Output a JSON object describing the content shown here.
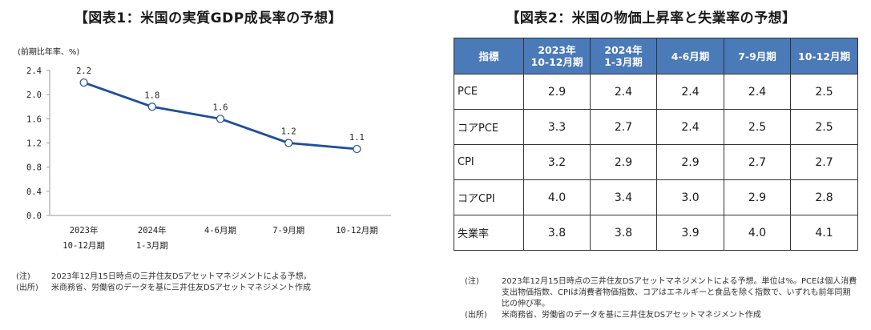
{
  "left": {
    "title": "【図表1：米国の実質GDP成長率の予想】",
    "unit_label": "(前期比年率、%)",
    "note_label": "(注)",
    "note_text": "2023年12月15日時点の三井住友DSアセットマネジメントによる予想。",
    "source_label": "(出所)",
    "source_text": "米商務省、労働省のデータを基に三井住友DSアセットマネジメント作成"
  },
  "chart_data": {
    "type": "line",
    "categories": [
      [
        "2023年",
        "10-12月期"
      ],
      [
        "2024年",
        "1-3月期"
      ],
      [
        "4-6月期"
      ],
      [
        "7-9月期"
      ],
      [
        "10-12月期"
      ]
    ],
    "values": [
      2.2,
      1.8,
      1.6,
      1.2,
      1.1
    ],
    "data_labels": [
      "2.2",
      "1.8",
      "1.6",
      "1.2",
      "1.1"
    ],
    "ylim": [
      0,
      2.4
    ],
    "yticks": [
      "0.0",
      "0.4",
      "0.8",
      "1.2",
      "1.6",
      "2.0",
      "2.4"
    ],
    "grid": false,
    "line_color": "#1f4e9c",
    "marker_fill": "#ffffff"
  },
  "right": {
    "title": "【図表2：米国の物価上昇率と失業率の予想】",
    "header": [
      "指標",
      "2023年\n10-12月期",
      "2024年\n1-3月期",
      "4-6月期",
      "7-9月期",
      "10-12月期"
    ],
    "rows": [
      {
        "label": "PCE",
        "values": [
          "2.9",
          "2.4",
          "2.4",
          "2.4",
          "2.5"
        ]
      },
      {
        "label": "コアPCE",
        "values": [
          "3.3",
          "2.7",
          "2.4",
          "2.5",
          "2.5"
        ]
      },
      {
        "label": "CPI",
        "values": [
          "3.2",
          "2.9",
          "2.9",
          "2.7",
          "2.7"
        ]
      },
      {
        "label": "コアCPI",
        "values": [
          "4.0",
          "3.4",
          "3.0",
          "2.9",
          "2.8"
        ]
      },
      {
        "label": "失業率",
        "values": [
          "3.8",
          "3.8",
          "3.9",
          "4.0",
          "4.1"
        ]
      }
    ],
    "note_label": "(注)",
    "note_text": "2023年12月15日時点の三井住友DSアセットマネジメントによる予想。単位は%。PCEは個人消費支出物価指数、CPIは消費者物価指数、コアはエネルギーと食品を除く指数で、いずれも前年同期比の伸び率。",
    "source_label": "(出所)",
    "source_text": "米商務省、労働省のデータを基に三井住友DSアセットマネジメント作成",
    "header_color": "#4a7ab8"
  }
}
